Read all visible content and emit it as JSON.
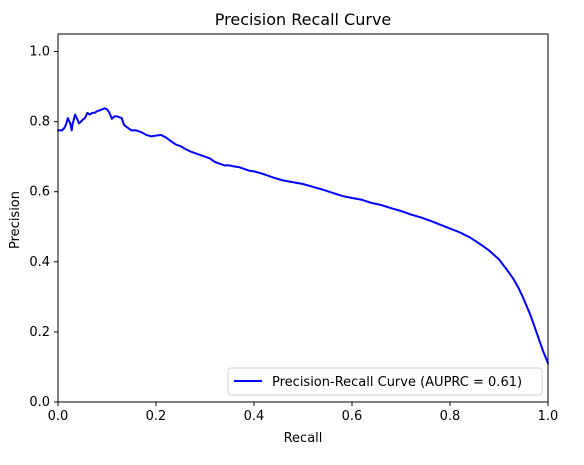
{
  "chart_data": {
    "type": "line",
    "title": "Precision Recall Curve",
    "xlabel": "Recall",
    "ylabel": "Precision",
    "xlim": [
      0,
      1
    ],
    "ylim": [
      0,
      1.05
    ],
    "x_ticks": [
      0,
      0.2,
      0.4,
      0.6,
      0.8,
      1
    ],
    "x_tick_labels": [
      "0.0",
      "0.2",
      "0.4",
      "0.6",
      "0.8",
      "1.0"
    ],
    "y_ticks": [
      0,
      0.2,
      0.4,
      0.6,
      0.8,
      1
    ],
    "y_tick_labels": [
      "0.0",
      "0.2",
      "0.4",
      "0.6",
      "0.8",
      "1.0"
    ],
    "grid": false,
    "legend_position": "lower-right",
    "series": [
      {
        "name": "Precision-Recall Curve (AUPRC = 0.61)",
        "color": "#0000ff",
        "x": [
          0,
          0.004,
          0.008,
          0.012,
          0.016,
          0.02,
          0.025,
          0.028,
          0.03,
          0.035,
          0.04,
          0.043,
          0.047,
          0.05,
          0.055,
          0.06,
          0.065,
          0.07,
          0.075,
          0.08,
          0.085,
          0.09,
          0.095,
          0.1,
          0.105,
          0.11,
          0.115,
          0.12,
          0.13,
          0.135,
          0.14,
          0.145,
          0.15,
          0.16,
          0.17,
          0.18,
          0.19,
          0.2,
          0.21,
          0.22,
          0.23,
          0.24,
          0.25,
          0.26,
          0.27,
          0.28,
          0.29,
          0.3,
          0.31,
          0.32,
          0.33,
          0.34,
          0.35,
          0.36,
          0.37,
          0.38,
          0.39,
          0.4,
          0.42,
          0.44,
          0.46,
          0.48,
          0.5,
          0.52,
          0.54,
          0.56,
          0.58,
          0.6,
          0.62,
          0.64,
          0.66,
          0.68,
          0.7,
          0.72,
          0.74,
          0.76,
          0.78,
          0.8,
          0.82,
          0.84,
          0.86,
          0.88,
          0.9,
          0.92,
          0.93,
          0.94,
          0.95,
          0.96,
          0.965,
          0.97,
          0.975,
          0.98,
          0.985,
          0.99,
          0.993,
          0.996,
          0.998,
          1.0
        ],
        "y": [
          0.775,
          0.775,
          0.775,
          0.78,
          0.79,
          0.81,
          0.795,
          0.775,
          0.795,
          0.82,
          0.805,
          0.795,
          0.8,
          0.805,
          0.81,
          0.825,
          0.82,
          0.825,
          0.825,
          0.83,
          0.832,
          0.835,
          0.838,
          0.835,
          0.825,
          0.808,
          0.815,
          0.815,
          0.81,
          0.79,
          0.785,
          0.78,
          0.775,
          0.775,
          0.77,
          0.762,
          0.758,
          0.76,
          0.762,
          0.755,
          0.745,
          0.735,
          0.73,
          0.722,
          0.715,
          0.71,
          0.705,
          0.7,
          0.695,
          0.685,
          0.68,
          0.675,
          0.675,
          0.672,
          0.67,
          0.665,
          0.66,
          0.658,
          0.65,
          0.64,
          0.632,
          0.627,
          0.622,
          0.614,
          0.606,
          0.597,
          0.588,
          0.582,
          0.577,
          0.568,
          0.562,
          0.553,
          0.545,
          0.535,
          0.527,
          0.517,
          0.506,
          0.495,
          0.484,
          0.47,
          0.452,
          0.432,
          0.407,
          0.37,
          0.35,
          0.325,
          0.295,
          0.262,
          0.245,
          0.225,
          0.205,
          0.185,
          0.165,
          0.145,
          0.135,
          0.125,
          0.118,
          0.11
        ]
      }
    ]
  }
}
